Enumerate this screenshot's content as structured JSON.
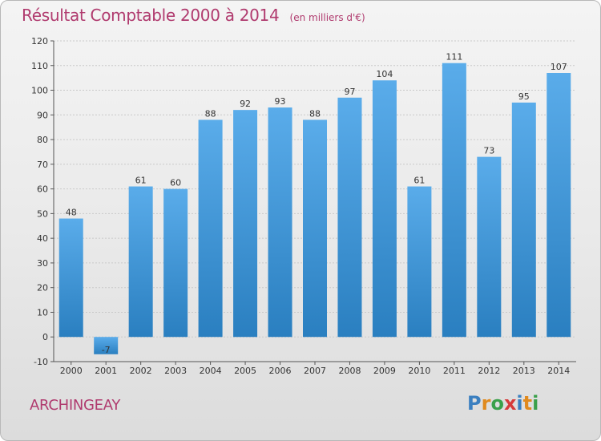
{
  "header": {
    "title": "Résultat Comptable 2000 à 2014",
    "subtitle": "(en milliers d'€)"
  },
  "footer": {
    "commune": "ARCHINGEAY",
    "logo_text": "Proxiti",
    "logo_letters": [
      {
        "ch": "P",
        "color": "#3a7fc0"
      },
      {
        "ch": "r",
        "color": "#e08a1e"
      },
      {
        "ch": "o",
        "color": "#3aa04a"
      },
      {
        "ch": "x",
        "color": "#d63a3a"
      },
      {
        "ch": "i",
        "color": "#3a7fc0"
      },
      {
        "ch": "t",
        "color": "#e08a1e"
      },
      {
        "ch": "i",
        "color": "#3aa04a"
      }
    ]
  },
  "colors": {
    "title": "#b03a6e",
    "bar_light": "#5aacea",
    "bar_dark": "#2a7fc0",
    "grid": "#c9c9c9"
  },
  "chart_data": {
    "type": "bar",
    "title": "Résultat Comptable 2000 à 2014",
    "subtitle": "(en milliers d'€)",
    "categories": [
      "2000",
      "2001",
      "2002",
      "2003",
      "2004",
      "2005",
      "2006",
      "2007",
      "2008",
      "2009",
      "2010",
      "2011",
      "2012",
      "2013",
      "2014"
    ],
    "values": [
      48,
      -7,
      61,
      60,
      88,
      92,
      93,
      88,
      97,
      104,
      61,
      111,
      73,
      95,
      107
    ],
    "ylim": [
      -10,
      120
    ],
    "yticks": [
      -10,
      0,
      10,
      20,
      30,
      40,
      50,
      60,
      70,
      80,
      90,
      100,
      110,
      120
    ],
    "grid": true,
    "grid_style": "dashed horizontal",
    "xlabel": "",
    "ylabel": ""
  }
}
